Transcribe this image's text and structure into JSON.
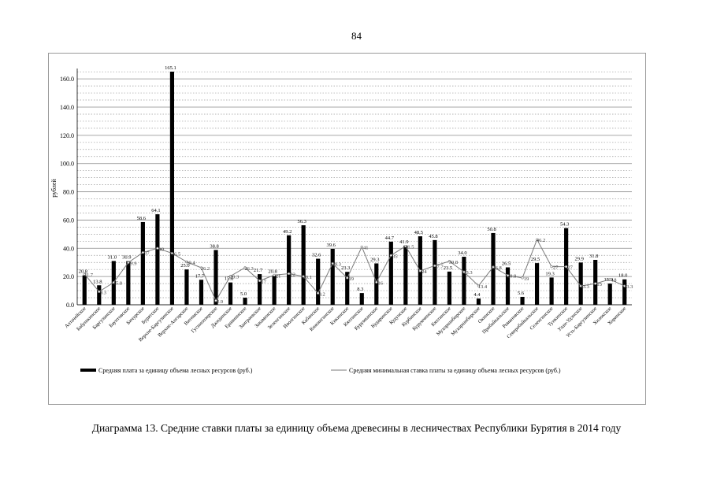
{
  "page_number": "84",
  "caption": "Диаграмма 13. Средние ставки платы за единицу объема древесины в лесничествах Республики Бурятия в 2014 году",
  "chart_data": {
    "type": "bar",
    "ylabel": "рублей",
    "xlabel": "",
    "ylim": [
      0,
      165.1
    ],
    "yticks": [
      "0.0",
      "20.0",
      "40.0",
      "60.0",
      "80.0",
      "100.0",
      "120.0",
      "140.0",
      "160.0"
    ],
    "grid": true,
    "legend_position": "bottom",
    "categories": [
      "Алтачейское",
      "Бабушкинское",
      "Баргузинское",
      "Баунтовское",
      "Бичурское",
      "Бурятское",
      "Верхне-Баргузинское",
      "Верхне-Ангарское",
      "Витимское",
      "Гусиноозерское",
      "Джидинское",
      "Еравнинское",
      "Заиграевское",
      "Закаменское",
      "Зеленгинское",
      "Иволгинское",
      "Кабанское",
      "Кижингинское",
      "Кикинское",
      "Кяхтинское",
      "Курумканское",
      "Кударинское",
      "Кудунское",
      "Курбинское",
      "Курумчинское",
      "Кяхтинское",
      "Мухоршибирское",
      "Мухоршибирское",
      "Окинское",
      "Прибайкальское",
      "Романовское",
      "Северобайкальское",
      "Селенгинское",
      "Тункинское",
      "Улан-Удэнское",
      "Усть-Баргузинское",
      "Хилокское",
      "Хоринское"
    ],
    "series": [
      {
        "name": "Средняя плата за единицу объема лесных ресурсов (руб.)",
        "style": "bar",
        "color": "#000000",
        "values": [
          20.8,
          13.8,
          31.0,
          30.9,
          58.6,
          64.1,
          165.1,
          25.0,
          17.7,
          38.8,
          15.8,
          5.0,
          21.7,
          20.8,
          49.2,
          56.3,
          32.6,
          39.6,
          23.3,
          8.3,
          29.3,
          44.7,
          41.9,
          48.5,
          45.8,
          23.5,
          34.0,
          4.4,
          50.8,
          26.5,
          5.6,
          29.5,
          19.3,
          54.3,
          29.9,
          31.8,
          15.0,
          18.0
        ]
      },
      {
        "name": "Средняя минимальная ставка платы за единицу объема лесных ресурсов (руб.)",
        "style": "line",
        "color": "#7a7a7a",
        "values": [
          21.7,
          9.3,
          15.8,
          29.9,
          37.0,
          40.0,
          36.5,
          30.4,
          26.2,
          2.9,
          20.3,
          26.3,
          17.0,
          21.0,
          22.0,
          20.1,
          8.2,
          29.3,
          19.0,
          41.0,
          16.0,
          35.0,
          41.5,
          24.0,
          27.7,
          30.8,
          23.3,
          13.4,
          26.8,
          20.8,
          19.0,
          46.2,
          27.0,
          27.0,
          13.3,
          15.0,
          18.0,
          13.3
        ]
      }
    ],
    "data_labels_bar": [
      "20.8",
      "13.8",
      "31.0",
      "30.9",
      "58.6",
      "64.1",
      "165.1",
      "25.0",
      "17.7",
      "38.8",
      "15.8",
      "5.0",
      "21.7",
      "20.8",
      "49.2",
      "56.3",
      "32.6",
      "39.6",
      "23.3",
      "8.3",
      "29.3",
      "44.7",
      "41.9",
      "48.5",
      "45.8",
      "23.5",
      "34.0",
      "4.4",
      "50.8",
      "26.5",
      "5.6",
      "29.5",
      "19.3",
      "54.3",
      "29.9",
      "31.8",
      "15.0",
      "18.0"
    ],
    "data_labels_line": [
      "21.7",
      "9.3",
      "15.8",
      "29.9",
      "37",
      "40",
      "36.5",
      "30.4",
      "26.2",
      "2.9",
      "20.3",
      "26.3",
      "17",
      "21",
      "22",
      "20.1",
      "8.2",
      "29.3",
      "19",
      "41",
      "16",
      "35",
      "41.5",
      "24",
      "27.7",
      "30.8",
      "23.3",
      "13.4",
      "26.8",
      "20.8",
      "19",
      "46.2",
      "27",
      "27",
      "13.3",
      "15",
      "18",
      "13.3"
    ]
  }
}
